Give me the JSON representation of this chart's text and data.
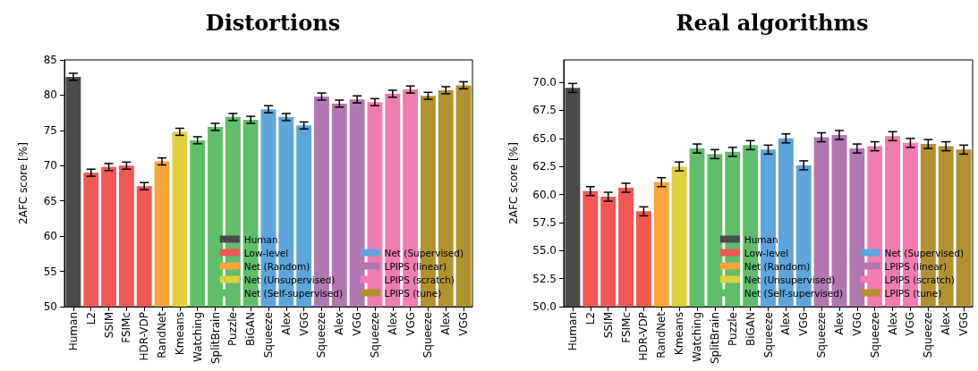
{
  "chart_data": [
    {
      "type": "bar",
      "title": "Distortions",
      "ylabel": "2AFC score [%]",
      "legend": "bottom right",
      "ylim": [
        50,
        85
      ],
      "yticks": [
        50,
        55,
        60,
        65,
        70,
        75,
        80,
        85
      ],
      "categories": [
        "Human",
        "L2",
        "SSIM",
        "FSIMc",
        "HDR-VDP",
        "RandNet",
        "Kmeans",
        "Watching",
        "SplitBrain",
        "Puzzle",
        "BiGAN",
        "Squeeze",
        "Alex",
        "VGG",
        "Squeeze",
        "Alex",
        "VGG",
        "Squeeze",
        "Alex",
        "VGG",
        "Squeeze",
        "Alex",
        "VGG"
      ],
      "series": [
        {
          "name": "Human",
          "color": "#4a4a4a",
          "values": [
            82.6,
            null,
            null,
            null,
            null,
            null,
            null,
            null,
            null,
            null,
            null,
            null,
            null,
            null,
            null,
            null,
            null,
            null,
            null,
            null,
            null,
            null,
            null
          ],
          "errors": [
            0.5,
            null,
            null,
            null,
            null,
            null,
            null,
            null,
            null,
            null,
            null,
            null,
            null,
            null,
            null,
            null,
            null,
            null,
            null,
            null,
            null,
            null,
            null
          ]
        },
        {
          "name": "Low-level",
          "color": "#f15854",
          "values": [
            null,
            69.0,
            69.8,
            70.0,
            67.1,
            null,
            null,
            null,
            null,
            null,
            null,
            null,
            null,
            null,
            null,
            null,
            null,
            null,
            null,
            null,
            null,
            null,
            null
          ],
          "errors": [
            null,
            0.5,
            0.5,
            0.5,
            0.5,
            null,
            null,
            null,
            null,
            null,
            null,
            null,
            null,
            null,
            null,
            null,
            null,
            null,
            null,
            null,
            null,
            null,
            null
          ]
        },
        {
          "name": "Net (Random)",
          "color": "#faa43a",
          "values": [
            null,
            null,
            null,
            null,
            null,
            70.6,
            null,
            null,
            null,
            null,
            null,
            null,
            null,
            null,
            null,
            null,
            null,
            null,
            null,
            null,
            null,
            null,
            null
          ],
          "errors": [
            null,
            null,
            null,
            null,
            null,
            0.5,
            null,
            null,
            null,
            null,
            null,
            null,
            null,
            null,
            null,
            null,
            null,
            null,
            null,
            null,
            null,
            null,
            null
          ]
        },
        {
          "name": "Net (Unsupervised)",
          "color": "#decf3f",
          "values": [
            null,
            null,
            null,
            null,
            null,
            null,
            74.8,
            null,
            null,
            null,
            null,
            null,
            null,
            null,
            null,
            null,
            null,
            null,
            null,
            null,
            null,
            null,
            null
          ],
          "errors": [
            null,
            null,
            null,
            null,
            null,
            null,
            0.5,
            null,
            null,
            null,
            null,
            null,
            null,
            null,
            null,
            null,
            null,
            null,
            null,
            null,
            null,
            null,
            null
          ]
        },
        {
          "name": "Net (Self-supervised)",
          "color": "#60bd68",
          "values": [
            null,
            null,
            null,
            null,
            null,
            null,
            null,
            73.6,
            75.5,
            76.9,
            76.5,
            null,
            null,
            null,
            null,
            null,
            null,
            null,
            null,
            null,
            null,
            null,
            null
          ],
          "errors": [
            null,
            null,
            null,
            null,
            null,
            null,
            null,
            0.5,
            0.5,
            0.5,
            0.5,
            null,
            null,
            null,
            null,
            null,
            null,
            null,
            null,
            null,
            null,
            null,
            null
          ]
        },
        {
          "name": "Net (Supervised)",
          "color": "#5da5da",
          "values": [
            null,
            null,
            null,
            null,
            null,
            null,
            null,
            null,
            null,
            null,
            null,
            78.0,
            76.9,
            75.7,
            null,
            null,
            null,
            null,
            null,
            null,
            null,
            null,
            null
          ],
          "errors": [
            null,
            null,
            null,
            null,
            null,
            null,
            null,
            null,
            null,
            null,
            null,
            0.5,
            0.5,
            0.5,
            null,
            null,
            null,
            null,
            null,
            null,
            null,
            null,
            null
          ]
        },
        {
          "name": "LPIPS (linear)",
          "color": "#b276b2",
          "values": [
            null,
            null,
            null,
            null,
            null,
            null,
            null,
            null,
            null,
            null,
            null,
            null,
            null,
            null,
            79.8,
            78.8,
            79.4,
            null,
            null,
            null,
            null,
            null,
            null
          ],
          "errors": [
            null,
            null,
            null,
            null,
            null,
            null,
            null,
            null,
            null,
            null,
            null,
            null,
            null,
            null,
            0.5,
            0.5,
            0.5,
            null,
            null,
            null,
            null,
            null,
            null
          ]
        },
        {
          "name": "LPIPS (scratch)",
          "color": "#f17cb0",
          "values": [
            null,
            null,
            null,
            null,
            null,
            null,
            null,
            null,
            null,
            null,
            null,
            null,
            null,
            null,
            null,
            null,
            null,
            79.0,
            80.2,
            80.8,
            null,
            null,
            null
          ],
          "errors": [
            null,
            null,
            null,
            null,
            null,
            null,
            null,
            null,
            null,
            null,
            null,
            null,
            null,
            null,
            null,
            null,
            null,
            0.5,
            0.5,
            0.5,
            null,
            null,
            null
          ]
        },
        {
          "name": "LPIPS (tune)",
          "color": "#b2912f",
          "values": [
            null,
            null,
            null,
            null,
            null,
            null,
            null,
            null,
            null,
            null,
            null,
            null,
            null,
            null,
            null,
            null,
            null,
            null,
            null,
            null,
            79.9,
            80.7,
            81.4
          ],
          "errors": [
            null,
            null,
            null,
            null,
            null,
            null,
            null,
            null,
            null,
            null,
            null,
            null,
            null,
            null,
            null,
            null,
            null,
            null,
            null,
            null,
            0.5,
            0.5,
            0.5
          ]
        }
      ]
    },
    {
      "type": "bar",
      "title": "Real algorithms",
      "ylabel": "2AFC score [%]",
      "legend": "bottom right",
      "ylim": [
        50,
        72
      ],
      "yticks": [
        {
          "value": 50,
          "label": "50.0"
        },
        {
          "value": 52.5,
          "label": "52.5"
        },
        {
          "value": 55,
          "label": "55.0"
        },
        {
          "value": 57.5,
          "label": "57.5"
        },
        {
          "value": 60,
          "label": "60.0"
        },
        {
          "value": 62.5,
          "label": "62.5"
        },
        {
          "value": 65,
          "label": "65.0"
        },
        {
          "value": 67.5,
          "label": "67.5"
        },
        {
          "value": 70,
          "label": "70.0"
        }
      ],
      "categories": [
        "Human",
        "L2",
        "SSIM",
        "FSIMc",
        "HDR-VDP",
        "RandNet",
        "Kmeans",
        "Watching",
        "SplitBrain",
        "Puzzle",
        "BiGAN",
        "Squeeze",
        "Alex",
        "VGG",
        "Squeeze",
        "Alex",
        "VGG",
        "Squeeze",
        "Alex",
        "VGG",
        "Squeeze",
        "Alex",
        "VGG"
      ],
      "series": [
        {
          "name": "Human",
          "color": "#4a4a4a",
          "values": [
            69.5,
            null,
            null,
            null,
            null,
            null,
            null,
            null,
            null,
            null,
            null,
            null,
            null,
            null,
            null,
            null,
            null,
            null,
            null,
            null,
            null,
            null,
            null
          ],
          "errors": [
            0.4,
            null,
            null,
            null,
            null,
            null,
            null,
            null,
            null,
            null,
            null,
            null,
            null,
            null,
            null,
            null,
            null,
            null,
            null,
            null,
            null,
            null,
            null
          ]
        },
        {
          "name": "Low-level",
          "color": "#f15854",
          "values": [
            null,
            60.3,
            59.8,
            60.6,
            58.5,
            null,
            null,
            null,
            null,
            null,
            null,
            null,
            null,
            null,
            null,
            null,
            null,
            null,
            null,
            null,
            null,
            null,
            null
          ],
          "errors": [
            null,
            0.4,
            0.4,
            0.4,
            0.4,
            null,
            null,
            null,
            null,
            null,
            null,
            null,
            null,
            null,
            null,
            null,
            null,
            null,
            null,
            null,
            null,
            null,
            null
          ]
        },
        {
          "name": "Net (Random)",
          "color": "#faa43a",
          "values": [
            null,
            null,
            null,
            null,
            null,
            61.1,
            null,
            null,
            null,
            null,
            null,
            null,
            null,
            null,
            null,
            null,
            null,
            null,
            null,
            null,
            null,
            null,
            null
          ],
          "errors": [
            null,
            null,
            null,
            null,
            null,
            0.4,
            null,
            null,
            null,
            null,
            null,
            null,
            null,
            null,
            null,
            null,
            null,
            null,
            null,
            null,
            null,
            null,
            null
          ]
        },
        {
          "name": "Net (Unsupervised)",
          "color": "#decf3f",
          "values": [
            null,
            null,
            null,
            null,
            null,
            null,
            62.5,
            null,
            null,
            null,
            null,
            null,
            null,
            null,
            null,
            null,
            null,
            null,
            null,
            null,
            null,
            null,
            null
          ],
          "errors": [
            null,
            null,
            null,
            null,
            null,
            null,
            0.4,
            null,
            null,
            null,
            null,
            null,
            null,
            null,
            null,
            null,
            null,
            null,
            null,
            null,
            null,
            null,
            null
          ]
        },
        {
          "name": "Net (Self-supervised)",
          "color": "#60bd68",
          "values": [
            null,
            null,
            null,
            null,
            null,
            null,
            null,
            64.1,
            63.6,
            63.8,
            64.4,
            null,
            null,
            null,
            null,
            null,
            null,
            null,
            null,
            null,
            null,
            null,
            null
          ],
          "errors": [
            null,
            null,
            null,
            null,
            null,
            null,
            null,
            0.4,
            0.4,
            0.4,
            0.4,
            null,
            null,
            null,
            null,
            null,
            null,
            null,
            null,
            null,
            null,
            null,
            null
          ]
        },
        {
          "name": "Net (Supervised)",
          "color": "#5da5da",
          "values": [
            null,
            null,
            null,
            null,
            null,
            null,
            null,
            null,
            null,
            null,
            null,
            64.0,
            65.0,
            62.6,
            null,
            null,
            null,
            null,
            null,
            null,
            null,
            null,
            null
          ],
          "errors": [
            null,
            null,
            null,
            null,
            null,
            null,
            null,
            null,
            null,
            null,
            null,
            0.4,
            0.4,
            0.4,
            null,
            null,
            null,
            null,
            null,
            null,
            null,
            null,
            null
          ]
        },
        {
          "name": "LPIPS (linear)",
          "color": "#b276b2",
          "values": [
            null,
            null,
            null,
            null,
            null,
            null,
            null,
            null,
            null,
            null,
            null,
            null,
            null,
            null,
            65.1,
            65.3,
            64.1,
            null,
            null,
            null,
            null,
            null,
            null
          ],
          "errors": [
            null,
            null,
            null,
            null,
            null,
            null,
            null,
            null,
            null,
            null,
            null,
            null,
            null,
            null,
            0.4,
            0.4,
            0.4,
            null,
            null,
            null,
            null,
            null,
            null
          ]
        },
        {
          "name": "LPIPS (scratch)",
          "color": "#f17cb0",
          "values": [
            null,
            null,
            null,
            null,
            null,
            null,
            null,
            null,
            null,
            null,
            null,
            null,
            null,
            null,
            null,
            null,
            null,
            64.3,
            65.2,
            64.6,
            null,
            null,
            null
          ],
          "errors": [
            null,
            null,
            null,
            null,
            null,
            null,
            null,
            null,
            null,
            null,
            null,
            null,
            null,
            null,
            null,
            null,
            null,
            0.4,
            0.4,
            0.4,
            null,
            null,
            null
          ]
        },
        {
          "name": "LPIPS (tune)",
          "color": "#b2912f",
          "values": [
            null,
            null,
            null,
            null,
            null,
            null,
            null,
            null,
            null,
            null,
            null,
            null,
            null,
            null,
            null,
            null,
            null,
            null,
            null,
            null,
            64.5,
            64.3,
            64.0
          ],
          "errors": [
            null,
            null,
            null,
            null,
            null,
            null,
            null,
            null,
            null,
            null,
            null,
            null,
            null,
            null,
            null,
            null,
            null,
            null,
            null,
            null,
            0.4,
            0.4,
            0.4
          ]
        }
      ]
    }
  ]
}
